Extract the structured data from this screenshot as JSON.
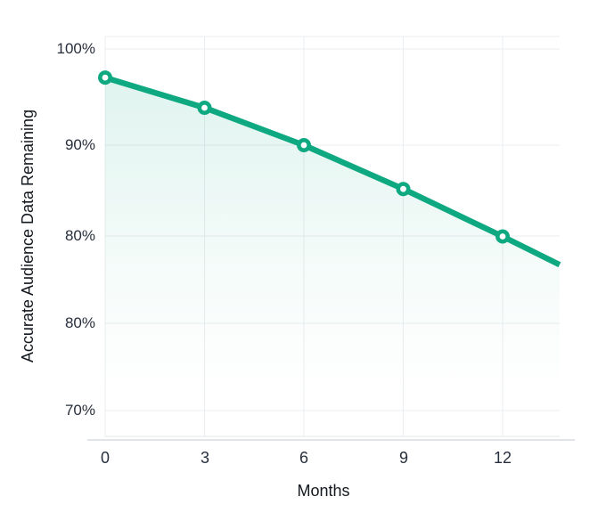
{
  "chart_data": {
    "type": "line",
    "title": "",
    "xlabel": "Months",
    "ylabel": "Accurate Audience Data Remaining",
    "x_tick_labels": [
      "0",
      "3",
      "6",
      "9",
      "12"
    ],
    "y_tick_labels": [
      "100%",
      "90%",
      "80%",
      "80%",
      "70%"
    ],
    "y_axis_note": "80% tick label appears twice on evenly spaced gridlines (broken axis)",
    "x_range": [
      0,
      13.7
    ],
    "grid": true,
    "legend": false,
    "series": [
      {
        "name": "Accurate Audience Data Remaining",
        "x": [
          0,
          3,
          6,
          9,
          12
        ],
        "values": [
          97.4,
          94.1,
          90,
          85.2,
          80
        ],
        "line_extension": {
          "x": 13.72,
          "value": 76.9
        },
        "marker": "open-circle"
      }
    ],
    "colors": {
      "line": "#0EA981",
      "marker_fill": "#FFFFFF",
      "area_fill_top_opacity": 0.13,
      "grid": "#EAEDEF",
      "inner_axis": "#E3E6EA",
      "axis": "#D7DBE0",
      "tick_text": "#272F3C",
      "title_text": "#13181E",
      "background": "#FFFFFF"
    }
  }
}
